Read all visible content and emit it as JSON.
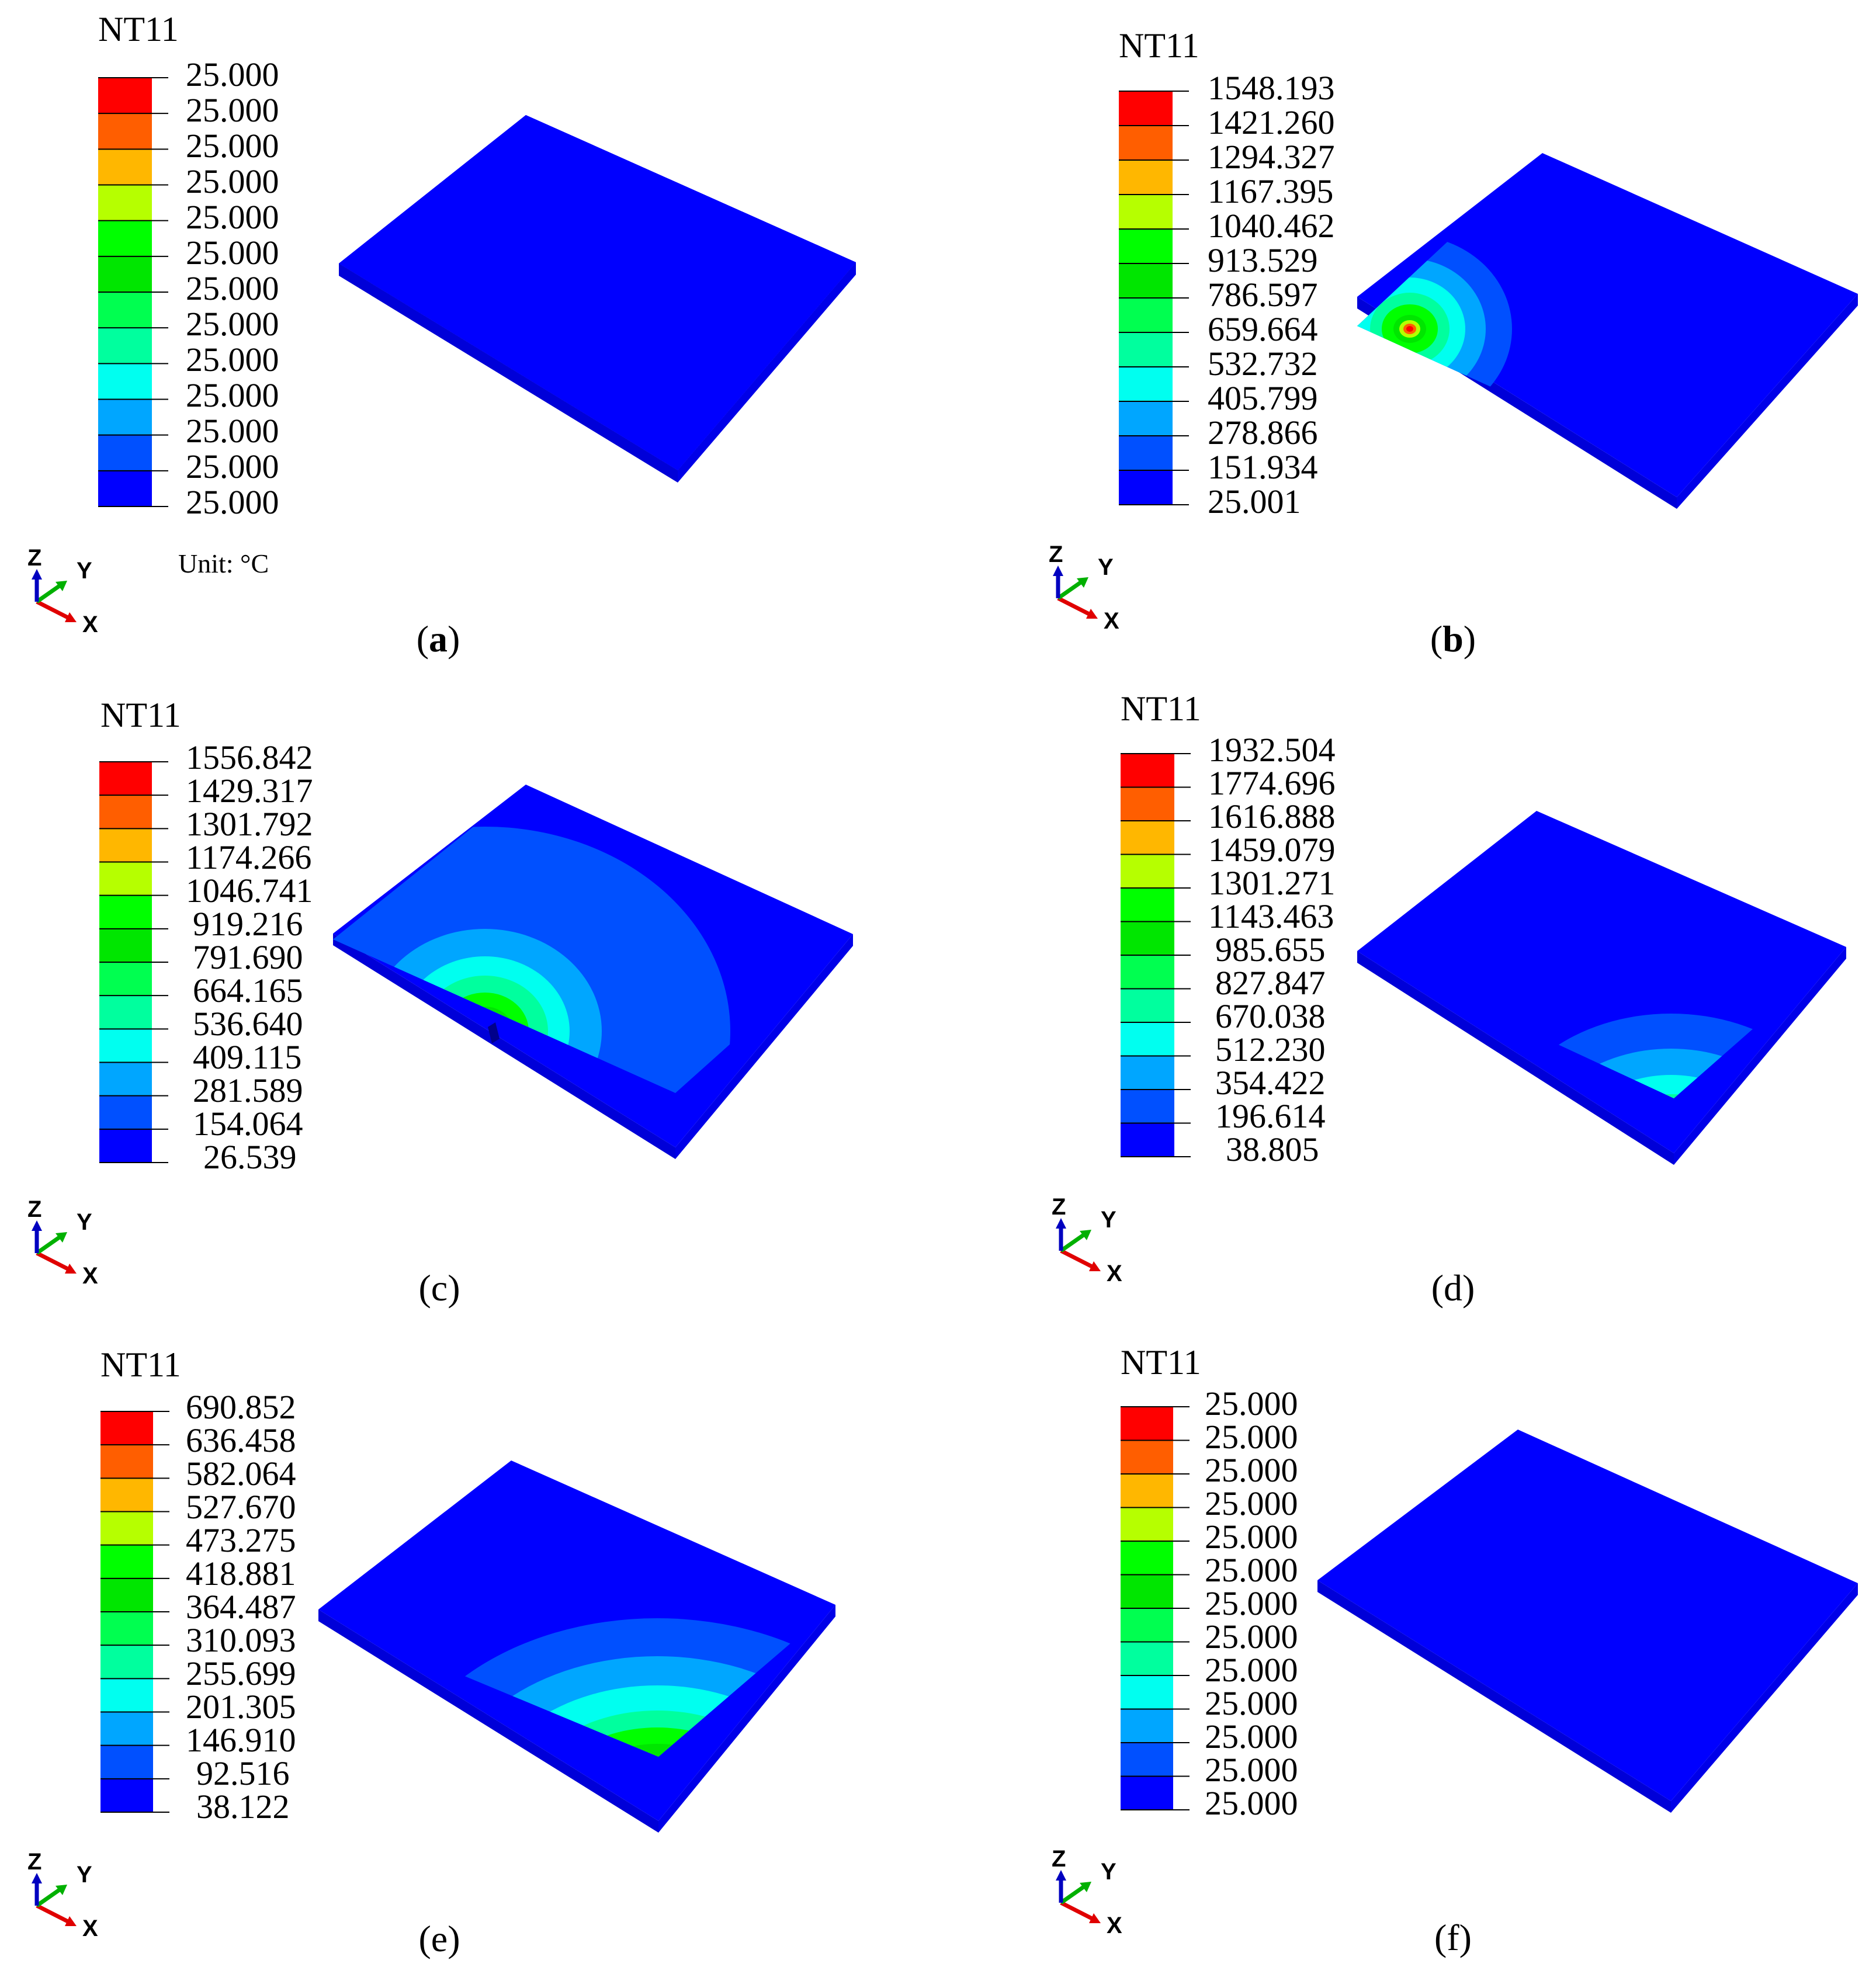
{
  "colormap": [
    "#0000FF",
    "#0050FF",
    "#00A6FF",
    "#00FFF0",
    "#00FF9E",
    "#00FF50",
    "#00E600",
    "#00FF00",
    "#B6FF00",
    "#FFB700",
    "#FF5E00",
    "#FF0000"
  ],
  "plate_color": "#0000FF",
  "panels": [
    {
      "label_open": "(",
      "label_letter": "a",
      "label_close": ")",
      "label_bold": true,
      "legend_title": "NT11",
      "ticks": [
        "25.000",
        "25.000",
        "25.000",
        "25.000",
        "25.000",
        "25.000",
        "25.000",
        "25.000",
        "25.000",
        "25.000",
        "25.000",
        "25.000",
        "25.000"
      ],
      "unit": "Unit: °C",
      "hotspot": "none"
    },
    {
      "label_open": "(",
      "label_letter": "b",
      "label_close": ")",
      "label_bold": true,
      "legend_title": "NT11",
      "ticks": [
        "1548.193",
        "1421.260",
        "1294.327",
        "1167.395",
        "1040.462",
        "913.529",
        "786.597",
        "659.664",
        "532.732",
        "405.799",
        "278.866",
        "151.934",
        "25.001"
      ],
      "hotspot": "front-left-edge"
    },
    {
      "label_open": "(",
      "label_letter": "c",
      "label_close": ")",
      "label_bold": false,
      "legend_title": "NT11",
      "ticks": [
        "1556.842",
        "1429.317",
        "1301.792",
        "1174.266",
        "1046.741",
        "919.216",
        "791.690",
        "664.165",
        "536.640",
        "409.115",
        "281.589",
        "154.064",
        "26.539"
      ],
      "hotspot": "front-left-edge-middle"
    },
    {
      "label_open": "(",
      "label_letter": "d",
      "label_close": ")",
      "label_bold": false,
      "legend_title": "NT11",
      "ticks": [
        "1932.504",
        "1774.696",
        "1616.888",
        "1459.079",
        "1301.271",
        "1143.463",
        "985.655",
        "827.847",
        "670.038",
        "512.230",
        "354.422",
        "196.614",
        "38.805"
      ],
      "hotspot": "front-corner"
    },
    {
      "label_open": "(",
      "label_letter": "e",
      "label_close": ")",
      "label_bold": false,
      "legend_title": "NT11",
      "ticks": [
        "690.852",
        "636.458",
        "582.064",
        "527.670",
        "473.275",
        "418.881",
        "364.487",
        "310.093",
        "255.699",
        "201.305",
        "146.910",
        "92.516",
        "38.122"
      ],
      "hotspot": "front-corner-wide"
    },
    {
      "label_open": "(",
      "label_letter": "f",
      "label_close": ")",
      "label_bold": false,
      "legend_title": "NT11",
      "ticks": [
        "25.000",
        "25.000",
        "25.000",
        "25.000",
        "25.000",
        "25.000",
        "25.000",
        "25.000",
        "25.000",
        "25.000",
        "25.000",
        "25.000",
        "25.000"
      ],
      "hotspot": "none"
    }
  ],
  "triad": {
    "z": "Z",
    "y": "Y",
    "x": "X"
  }
}
